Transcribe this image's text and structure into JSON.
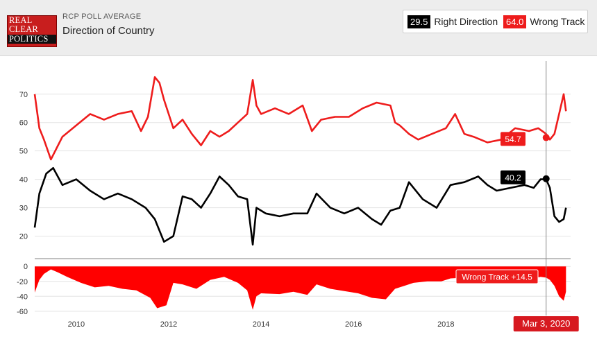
{
  "header": {
    "logo_lines": [
      "REAL",
      "CLEAR",
      "POLITICS"
    ],
    "kicker": "RCP POLL AVERAGE",
    "title": "Direction of Country"
  },
  "legend": [
    {
      "value": "29.5",
      "label": "Right Direction",
      "color": "#000000"
    },
    {
      "value": "64.0",
      "label": "Wrong Track",
      "color": "#ee1c1c"
    }
  ],
  "colors": {
    "right": "#000000",
    "wrong": "#ee1c1c",
    "spread": "#ff0000"
  },
  "chart_data": [
    {
      "type": "line",
      "xlim": [
        2009.1,
        2020.7
      ],
      "ylim": [
        15,
        78
      ],
      "yticks": [
        20,
        30,
        40,
        50,
        60,
        70
      ],
      "grid": true,
      "series": [
        {
          "name": "Wrong Track",
          "color": "#ee1c1c",
          "x": [
            2009.1,
            2009.2,
            2009.3,
            2009.45,
            2009.7,
            2010.0,
            2010.3,
            2010.6,
            2010.9,
            2011.2,
            2011.4,
            2011.55,
            2011.7,
            2011.8,
            2011.9,
            2012.1,
            2012.3,
            2012.5,
            2012.7,
            2012.9,
            2013.1,
            2013.3,
            2013.5,
            2013.7,
            2013.82,
            2013.9,
            2014.0,
            2014.3,
            2014.6,
            2014.9,
            2015.1,
            2015.3,
            2015.6,
            2015.9,
            2016.2,
            2016.5,
            2016.8,
            2016.9,
            2017.0,
            2017.2,
            2017.4,
            2017.7,
            2018.0,
            2018.2,
            2018.4,
            2018.6,
            2018.9,
            2019.2,
            2019.5,
            2019.8,
            2020.0,
            2020.17,
            2020.25,
            2020.35,
            2020.45,
            2020.55,
            2020.6
          ],
          "y": [
            70,
            58,
            54,
            47,
            55,
            59,
            63,
            61,
            63,
            64,
            57,
            62,
            76,
            74,
            68,
            58,
            61,
            56,
            52,
            57,
            55,
            57,
            60,
            63,
            75,
            66,
            63,
            65,
            63,
            66,
            57,
            61,
            62,
            62,
            65,
            67,
            66,
            60,
            59,
            56,
            54,
            56,
            58,
            63,
            56,
            55,
            53,
            54,
            58,
            57,
            58,
            56,
            54,
            56,
            63,
            70,
            64
          ]
        },
        {
          "name": "Right Direction",
          "color": "#000000",
          "x": [
            2009.1,
            2009.2,
            2009.35,
            2009.5,
            2009.7,
            2010.0,
            2010.3,
            2010.6,
            2010.9,
            2011.2,
            2011.5,
            2011.7,
            2011.9,
            2012.1,
            2012.3,
            2012.5,
            2012.7,
            2012.9,
            2013.1,
            2013.3,
            2013.5,
            2013.7,
            2013.82,
            2013.9,
            2014.1,
            2014.4,
            2014.7,
            2015.0,
            2015.2,
            2015.5,
            2015.8,
            2016.1,
            2016.4,
            2016.6,
            2016.8,
            2017.0,
            2017.2,
            2017.5,
            2017.8,
            2018.1,
            2018.4,
            2018.7,
            2018.9,
            2019.1,
            2019.4,
            2019.7,
            2019.9,
            2020.05,
            2020.17,
            2020.25,
            2020.35,
            2020.45,
            2020.55,
            2020.6
          ],
          "y": [
            23,
            35,
            42,
            44,
            38,
            40,
            36,
            33,
            35,
            33,
            30,
            26,
            18,
            20,
            34,
            33,
            30,
            35,
            41,
            38,
            34,
            33,
            17,
            30,
            28,
            27,
            28,
            28,
            35,
            30,
            28,
            30,
            26,
            24,
            29,
            30,
            39,
            33,
            30,
            38,
            39,
            41,
            38,
            36,
            37,
            38,
            37,
            40,
            40,
            37,
            27,
            25,
            26,
            30
          ]
        }
      ],
      "annotations": [
        {
          "text": "54.7",
          "color": "#ee1c1c"
        },
        {
          "text": "40.2",
          "color": "#000000"
        }
      ]
    },
    {
      "type": "area",
      "xlim": [
        2009.1,
        2020.7
      ],
      "ylim": [
        -62,
        3
      ],
      "yticks": [
        0,
        -20,
        -40,
        -60
      ],
      "xticks": [
        "2010",
        "2012",
        "2014",
        "2016",
        "2018"
      ],
      "xtick_values": [
        2010,
        2012,
        2014,
        2016,
        2018
      ],
      "series": [
        {
          "name": "Wrong Track",
          "color": "#ff0000",
          "x": [
            2009.1,
            2009.2,
            2009.3,
            2009.45,
            2009.6,
            2009.8,
            2010.1,
            2010.4,
            2010.7,
            2011.0,
            2011.3,
            2011.6,
            2011.75,
            2011.95,
            2012.1,
            2012.3,
            2012.6,
            2012.9,
            2013.2,
            2013.5,
            2013.7,
            2013.82,
            2013.9,
            2014.0,
            2014.4,
            2014.7,
            2015.0,
            2015.2,
            2015.5,
            2015.8,
            2016.1,
            2016.4,
            2016.7,
            2016.9,
            2017.1,
            2017.3,
            2017.6,
            2017.9,
            2018.1,
            2018.4,
            2018.7,
            2018.9,
            2019.1,
            2019.4,
            2019.7,
            2019.9,
            2020.05,
            2020.17,
            2020.25,
            2020.35,
            2020.45,
            2020.55,
            2020.6
          ],
          "y": [
            -35,
            -18,
            -10,
            -4,
            -8,
            -14,
            -22,
            -28,
            -26,
            -30,
            -32,
            -42,
            -56,
            -52,
            -22,
            -24,
            -30,
            -18,
            -14,
            -22,
            -32,
            -58,
            -40,
            -36,
            -37,
            -34,
            -38,
            -24,
            -30,
            -33,
            -36,
            -42,
            -44,
            -30,
            -26,
            -22,
            -20,
            -20,
            -16,
            -15,
            -12,
            -18,
            -20,
            -18,
            -20,
            -16,
            -14,
            -15,
            -18,
            -26,
            -40,
            -46,
            -34
          ]
        }
      ],
      "annotations": [
        {
          "text": "Wrong Track +14.5",
          "color": "#ee1c1c"
        }
      ]
    }
  ],
  "crosshair_label": "Mar 3, 2020"
}
